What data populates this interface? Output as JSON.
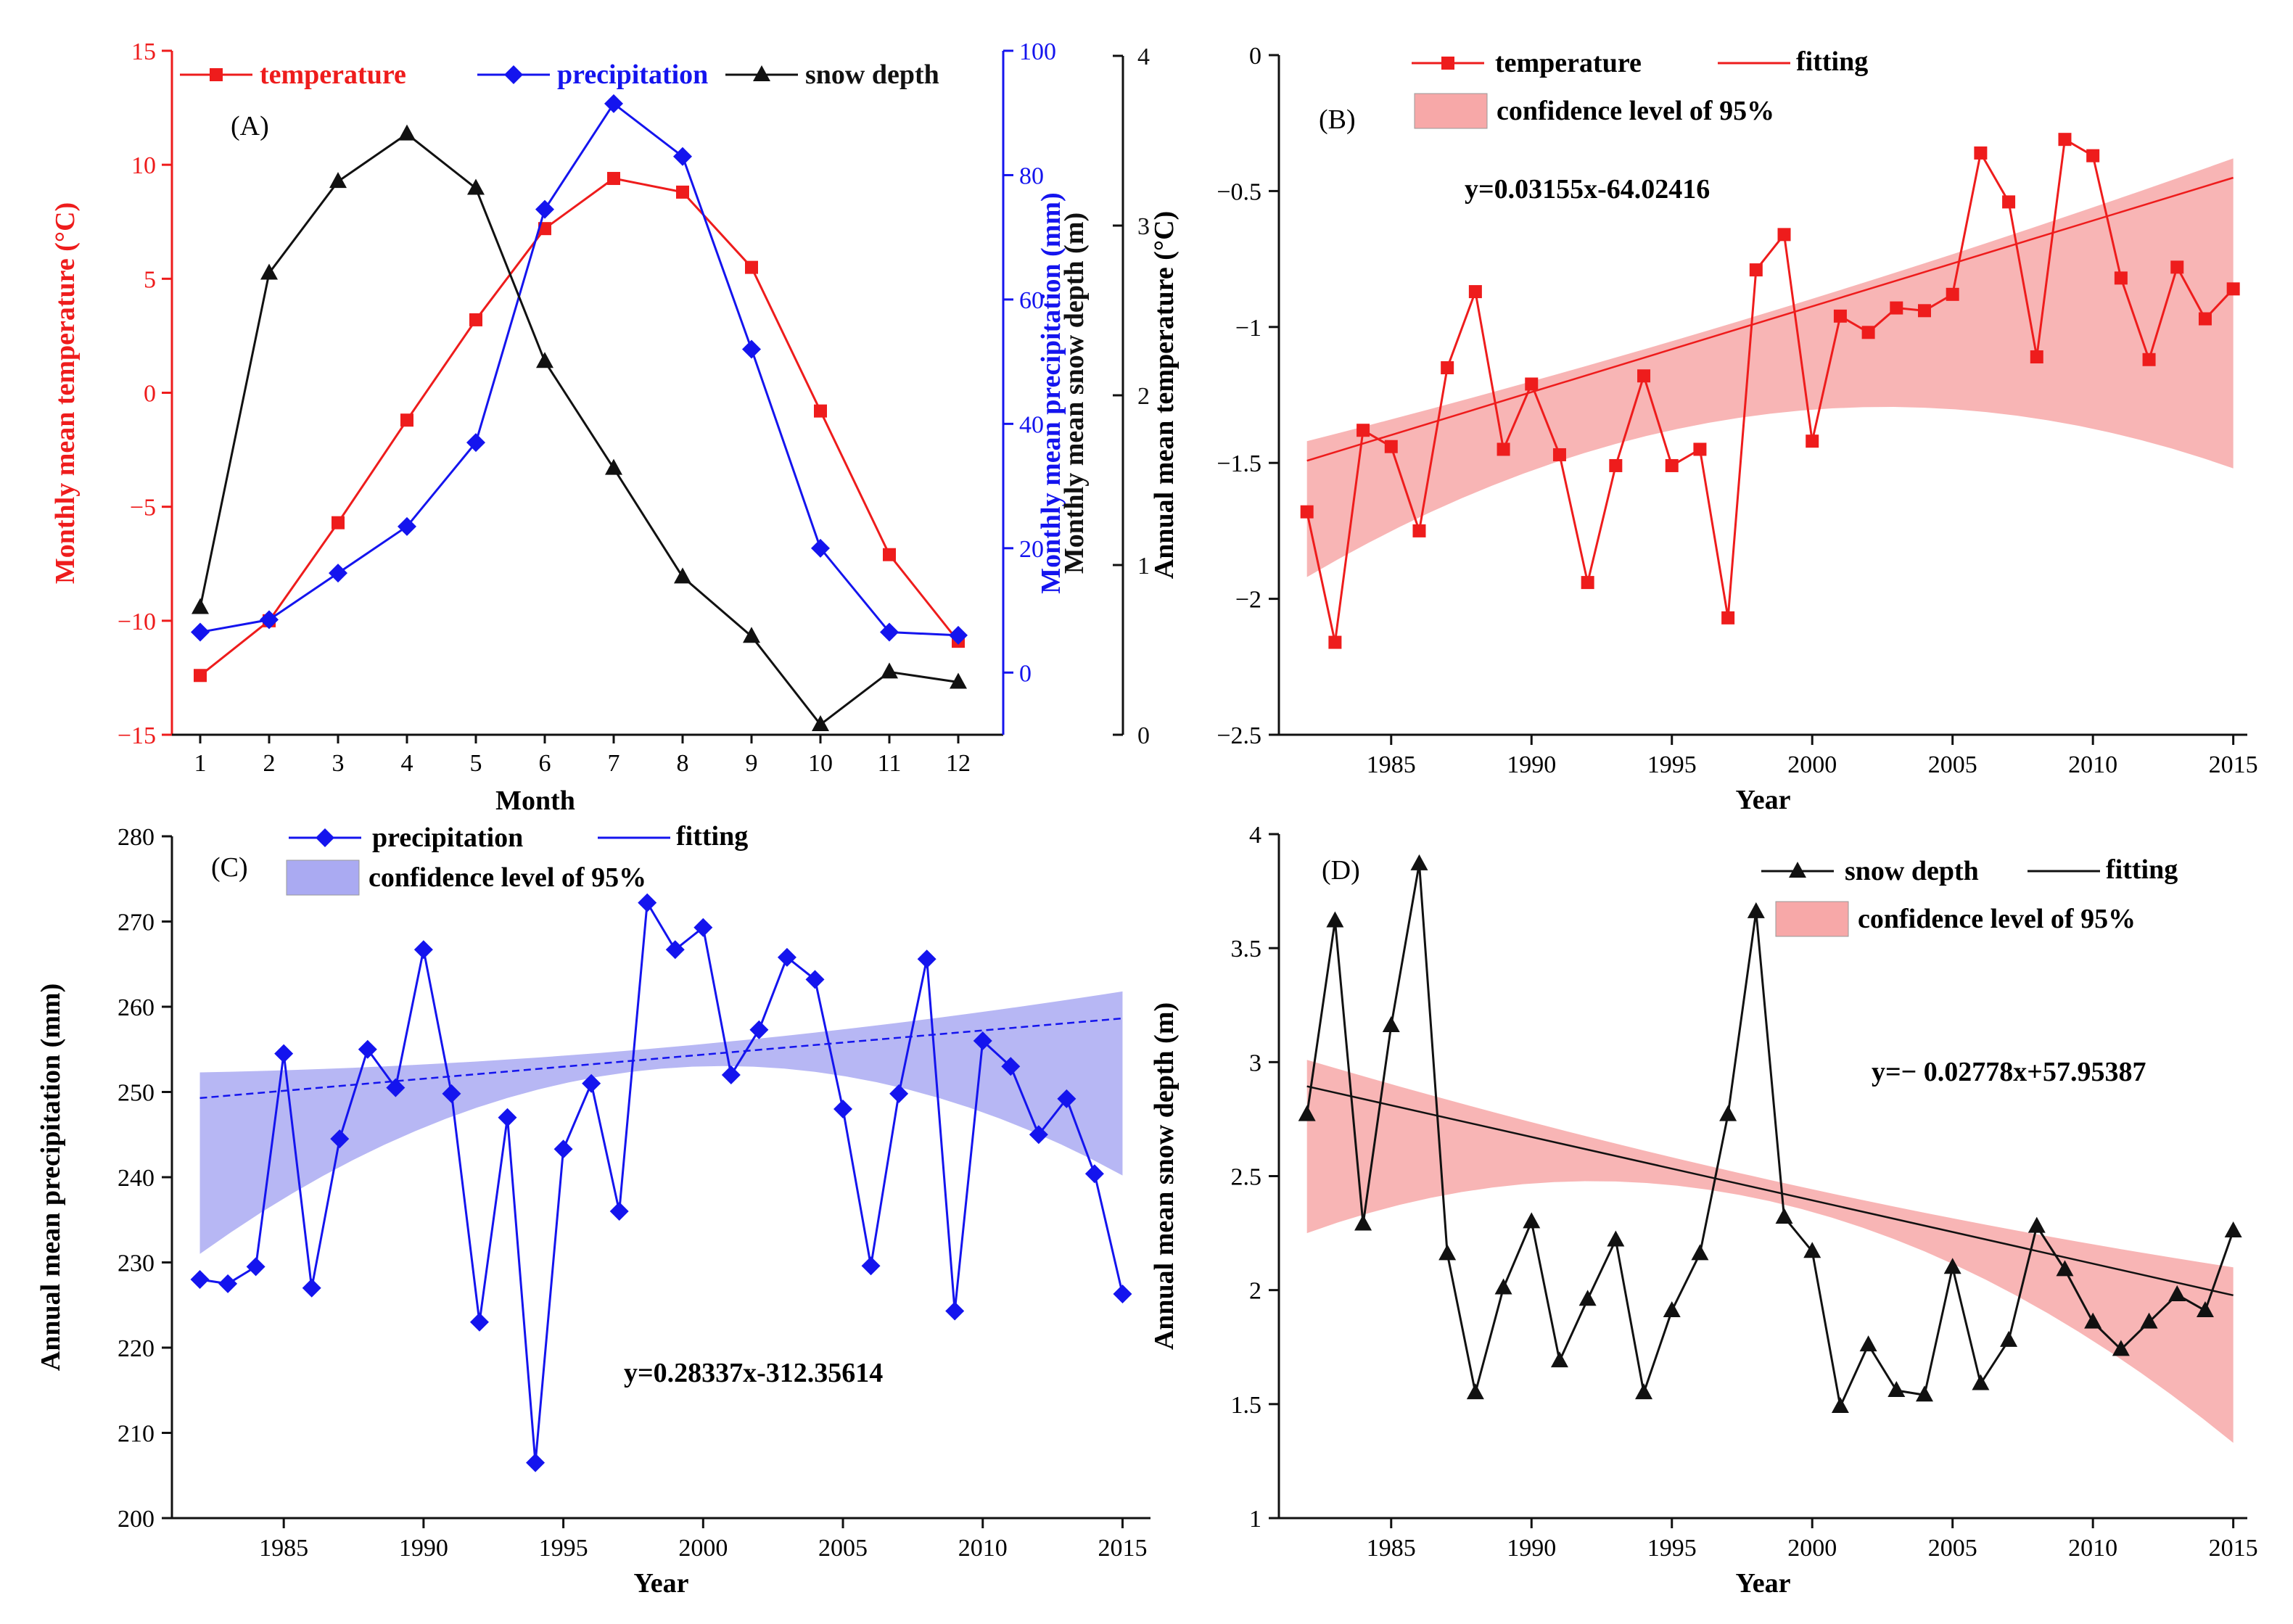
{
  "chart_data": [
    {
      "type": "line",
      "panel_label": "(A)",
      "xlabel": "Month",
      "categories": [
        "1",
        "2",
        "3",
        "4",
        "5",
        "6",
        "7",
        "8",
        "9",
        "10",
        "11",
        "12"
      ],
      "axes": {
        "left": {
          "label": "Monthly mean temperature (°C)",
          "ylim": [
            -15,
            15
          ],
          "ticks": [
            "−15",
            "−10",
            "−5",
            "0",
            "5",
            "10",
            "15"
          ],
          "tick_values": [
            -15,
            -10,
            -5,
            0,
            5,
            10,
            15
          ],
          "color": "#ee1c1c"
        },
        "right1": {
          "label": "Monthly mean precipitation (mm)",
          "ylim": [
            -10,
            100
          ],
          "ticks": [
            "0",
            "20",
            "40",
            "60",
            "80",
            "100"
          ],
          "tick_values": [
            0,
            20,
            40,
            60,
            80,
            100
          ],
          "color": "#1414ee"
        },
        "right2": {
          "label": "Monthly mean snow depth (m)",
          "ylim": [
            0,
            4
          ],
          "ticks": [
            "0",
            "1",
            "2",
            "3",
            "4"
          ],
          "tick_values": [
            0,
            1,
            2,
            3,
            4
          ],
          "color": "#111111"
        }
      },
      "series": [
        {
          "name": "temperature",
          "axis": "left",
          "marker": "square",
          "color": "#ee1c1c",
          "values": [
            -12.4,
            -10,
            -5.7,
            -1.2,
            3.2,
            7.2,
            9.4,
            8.8,
            5.5,
            -0.8,
            -7.1,
            -10.9
          ]
        },
        {
          "name": "precipitation",
          "axis": "right1",
          "marker": "diamond",
          "color": "#1414ee",
          "values": [
            6.5,
            8.5,
            16,
            23.5,
            37,
            74.5,
            91.5,
            83,
            52,
            20,
            6.5,
            6
          ]
        },
        {
          "name": "snow depth",
          "axis": "right2",
          "marker": "triangle",
          "color": "#111111",
          "values": [
            0.75,
            2.72,
            3.26,
            3.54,
            3.22,
            2.2,
            1.57,
            0.93,
            0.58,
            0.06,
            0.37,
            0.31
          ]
        }
      ]
    },
    {
      "type": "line",
      "panel_label": "(B)",
      "xlabel": "Year",
      "ylabel": "Annual mean temperature (°C)",
      "ylim": [
        -2.5,
        0
      ],
      "xlim": [
        1981,
        2015.5
      ],
      "xticks": [
        1985,
        1990,
        1995,
        2000,
        2005,
        2010,
        2015
      ],
      "yticks": [
        "0",
        "−0.5",
        "−1",
        "−1.5",
        "−2",
        "−2.5"
      ],
      "ytick_values": [
        0,
        -0.5,
        -1,
        -1.5,
        -2,
        -2.5
      ],
      "x": [
        1982,
        1983,
        1984,
        1985,
        1986,
        1987,
        1988,
        1989,
        1990,
        1991,
        1992,
        1993,
        1994,
        1995,
        1996,
        1997,
        1998,
        1999,
        2000,
        2001,
        2002,
        2003,
        2004,
        2005,
        2006,
        2007,
        2008,
        2009,
        2010,
        2011,
        2012,
        2013,
        2014,
        2015
      ],
      "series": [
        {
          "name": "temperature",
          "marker": "square",
          "color": "#ee1c1c",
          "values": [
            -1.68,
            -2.16,
            -1.38,
            -1.44,
            -1.75,
            -1.15,
            -0.87,
            -1.45,
            -1.21,
            -1.47,
            -1.94,
            -1.51,
            -1.18,
            -1.51,
            -1.45,
            -2.07,
            -0.79,
            -0.66,
            -1.42,
            -0.96,
            -1.02,
            -0.93,
            -0.94,
            -0.88,
            -0.36,
            -0.54,
            -1.11,
            -0.31,
            -0.37,
            -0.82,
            -1.12,
            -0.78,
            -0.97,
            -0.86
          ]
        }
      ],
      "fit": {
        "name": "fitting",
        "slope": 0.03155,
        "intercept": -64.02416,
        "color": "#ee1c1c"
      },
      "band": {
        "name": "confidence level of 95%",
        "color": "#f7a8a8",
        "lower": [
          -1.92,
          -1.52
        ],
        "upper": [
          -1.42,
          -0.38
        ]
      },
      "equation": "y=0.03155x-64.02416"
    },
    {
      "type": "line",
      "panel_label": "(C)",
      "xlabel": "Year",
      "ylabel": "Annual mean precipitation (mm)",
      "ylim": [
        200,
        280
      ],
      "xlim": [
        1981,
        2016
      ],
      "xticks": [
        1985,
        1990,
        1995,
        2000,
        2005,
        2010,
        2015
      ],
      "yticks": [
        "200",
        "210",
        "220",
        "230",
        "240",
        "250",
        "260",
        "270",
        "280"
      ],
      "ytick_values": [
        200,
        210,
        220,
        230,
        240,
        250,
        260,
        270,
        280
      ],
      "x": [
        1982,
        1983,
        1984,
        1985,
        1986,
        1987,
        1988,
        1989,
        1990,
        1991,
        1992,
        1993,
        1994,
        1995,
        1996,
        1997,
        1998,
        1999,
        2000,
        2001,
        2002,
        2003,
        2004,
        2005,
        2006,
        2007,
        2008,
        2009,
        2010,
        2011,
        2012,
        2013,
        2014,
        2015
      ],
      "series": [
        {
          "name": "precipitation",
          "marker": "diamond",
          "color": "#1414ee",
          "values": [
            228,
            227.5,
            229.5,
            254.5,
            227,
            244.5,
            255,
            250.5,
            266.7,
            249.8,
            223,
            247,
            206.5,
            243.3,
            251,
            236,
            272.2,
            266.7,
            269.3,
            252,
            257.3,
            265.8,
            263.2,
            248,
            229.6,
            249.8,
            265.6,
            224.3,
            256,
            253,
            245,
            249.2,
            240.4,
            226.3
          ]
        }
      ],
      "fit": {
        "name": "fitting",
        "slope": 0.28337,
        "intercept": -312.35614,
        "color": "#1414ee"
      },
      "band": {
        "name": "confidence level of 95%",
        "color": "#aaaaf2",
        "lower": [
          231,
          240.2
        ],
        "upper": [
          252.3,
          261.8
        ]
      },
      "equation": "y=0.28337x-312.35614"
    },
    {
      "type": "line",
      "panel_label": "(D)",
      "xlabel": "Year",
      "ylabel": "Annual mean snow depth (m)",
      "ylim": [
        1,
        4
      ],
      "xlim": [
        1981,
        2015.5
      ],
      "xticks": [
        1985,
        1990,
        1995,
        2000,
        2005,
        2010,
        2015
      ],
      "yticks": [
        "1",
        "1.5",
        "2",
        "2.5",
        "3",
        "3.5",
        "4"
      ],
      "ytick_values": [
        1,
        1.5,
        2,
        2.5,
        3,
        3.5,
        4
      ],
      "x": [
        1982,
        1983,
        1984,
        1985,
        1986,
        1987,
        1988,
        1989,
        1990,
        1991,
        1992,
        1993,
        1994,
        1995,
        1996,
        1997,
        1998,
        1999,
        2000,
        2001,
        2002,
        2003,
        2004,
        2005,
        2006,
        2007,
        2008,
        2009,
        2010,
        2011,
        2012,
        2013,
        2014,
        2015
      ],
      "series": [
        {
          "name": "snow depth",
          "marker": "triangle",
          "color": "#111111",
          "values": [
            2.77,
            3.62,
            2.29,
            3.16,
            3.87,
            2.16,
            1.55,
            2.01,
            2.3,
            1.69,
            1.96,
            2.22,
            1.55,
            1.91,
            2.16,
            2.77,
            3.66,
            2.32,
            2.17,
            1.49,
            1.76,
            1.56,
            1.54,
            2.1,
            1.59,
            1.78,
            2.28,
            2.09,
            1.86,
            1.74,
            1.86,
            1.98,
            1.91,
            2.26
          ]
        }
      ],
      "fit": {
        "name": "fitting",
        "slope": -0.02778,
        "intercept": 57.95387,
        "color": "#111111"
      },
      "band": {
        "name": "confidence level of 95%",
        "color": "#f7a8a8",
        "lower": [
          2.25,
          1.33
        ],
        "upper": [
          3.01,
          2.1
        ]
      },
      "equation": "y=− 0.02778x+57.95387"
    }
  ]
}
